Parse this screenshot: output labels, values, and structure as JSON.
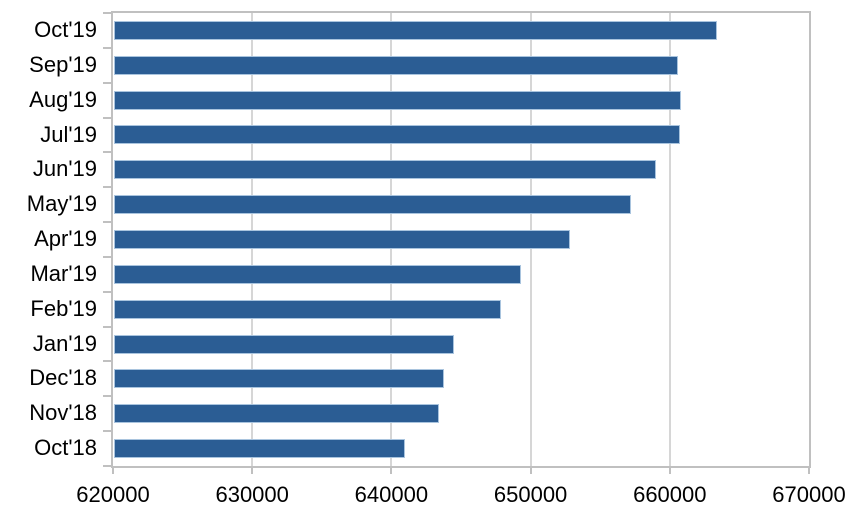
{
  "chart_data": {
    "type": "bar",
    "orientation": "horizontal",
    "title": "",
    "xlabel": "",
    "ylabel": "",
    "categories": [
      "Oct'19",
      "Sep'19",
      "Aug'19",
      "Jul'19",
      "Jun'19",
      "May'19",
      "Apr'19",
      "Mar'19",
      "Feb'19",
      "Jan'19",
      "Dec'18",
      "Nov'18",
      "Oct'18"
    ],
    "values": [
      663400,
      660600,
      660800,
      660700,
      659000,
      657200,
      652800,
      649300,
      647900,
      644500,
      643800,
      643400,
      641000
    ],
    "xlim": [
      620000,
      670000
    ],
    "xticks": [
      620000,
      630000,
      640000,
      650000,
      660000,
      670000
    ],
    "xtick_labels": [
      "620000",
      "630000",
      "640000",
      "650000",
      "660000",
      "670000"
    ],
    "grid": true,
    "legend": false,
    "colors": {
      "bar_fill": "#2B5D94",
      "bar_border": "#A9C4DE",
      "gridline": "#D6D6D6",
      "axis": "#C0C0C0",
      "text": "#000000",
      "background": "#FFFFFF"
    }
  }
}
